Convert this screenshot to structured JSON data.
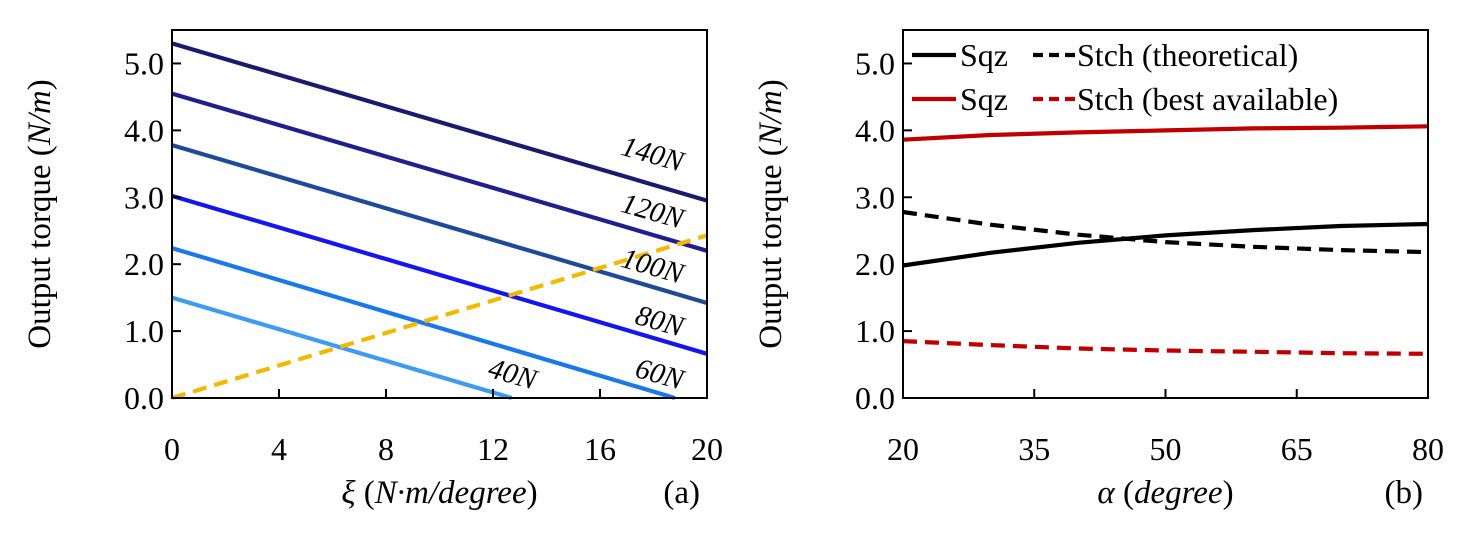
{
  "chart_data": [
    {
      "type": "line",
      "panel_label": "(a)",
      "xlabel": {
        "sym": "ξ",
        "pre": " (",
        "unit": "N·m/degree",
        "post": ")"
      },
      "ylabel": {
        "pre": "Output torque (",
        "unit": "N/m",
        "post": ")"
      },
      "xlim": [
        0,
        20
      ],
      "ylim": [
        0,
        5.5
      ],
      "xticks": [
        "0",
        "4",
        "8",
        "12",
        "16",
        "20"
      ],
      "xtick_values": [
        0,
        4,
        8,
        12,
        16,
        20
      ],
      "yticks": [
        "0.0",
        "1.0",
        "2.0",
        "3.0",
        "4.0",
        "5.0"
      ],
      "ytick_values": [
        0,
        1,
        2,
        3,
        4,
        5
      ],
      "series": [
        {
          "name": "140N",
          "label": "140N",
          "color": "#1a1a6e",
          "dash": "solid",
          "x": [
            0,
            20
          ],
          "y": [
            5.3,
            2.95
          ]
        },
        {
          "name": "120N",
          "label": "120N",
          "color": "#1f1f8f",
          "dash": "solid",
          "x": [
            0,
            20
          ],
          "y": [
            4.55,
            2.2
          ]
        },
        {
          "name": "100N",
          "label": "100N",
          "color": "#1e4a9a",
          "dash": "solid",
          "x": [
            0,
            20
          ],
          "y": [
            3.78,
            1.42
          ]
        },
        {
          "name": "80N",
          "label": "80N",
          "color": "#1515f0",
          "dash": "solid",
          "x": [
            0,
            20
          ],
          "y": [
            3.02,
            0.66
          ]
        },
        {
          "name": "60N",
          "label": "60N",
          "color": "#1a78e8",
          "dash": "solid",
          "x": [
            0,
            18.8
          ],
          "y": [
            2.24,
            0.0
          ]
        },
        {
          "name": "40N",
          "label": "40N",
          "color": "#3d9cf0",
          "dash": "solid",
          "x": [
            0,
            12.7
          ],
          "y": [
            1.5,
            0.0
          ]
        },
        {
          "name": "",
          "label": "",
          "color": "#f5b800",
          "dash": "dashed",
          "x": [
            0,
            20
          ],
          "y": [
            0.0,
            2.43
          ]
        }
      ]
    },
    {
      "type": "line",
      "panel_label": "(b)",
      "xlabel": {
        "sym": "α",
        "pre": " (",
        "unit": "degree",
        "post": ")"
      },
      "ylabel": {
        "pre": "Output torque (",
        "unit": "N/m",
        "post": ")"
      },
      "xlim": [
        20,
        80
      ],
      "ylim": [
        0,
        5.5
      ],
      "xticks": [
        "20",
        "35",
        "50",
        "65",
        "80"
      ],
      "xtick_values": [
        20,
        35,
        50,
        65,
        80
      ],
      "yticks": [
        "0.0",
        "1.0",
        "2.0",
        "3.0",
        "4.0",
        "5.0"
      ],
      "ytick_values": [
        0,
        1,
        2,
        3,
        4,
        5
      ],
      "legend_position": "top",
      "legend": [
        {
          "label": "Sqz",
          "color": "#000000",
          "dash": "solid"
        },
        {
          "label": "Stch (theoretical)",
          "color": "#000000",
          "dash": "dashed"
        },
        {
          "label": "Sqz",
          "color": "#c00000",
          "dash": "solid"
        },
        {
          "label": "Stch (best available)",
          "color": "#c00000",
          "dash": "dashed"
        }
      ],
      "series": [
        {
          "name": "Sqz",
          "color": "#c00000",
          "dash": "solid",
          "x": [
            20,
            30,
            40,
            50,
            60,
            70,
            80
          ],
          "y": [
            3.86,
            3.93,
            3.97,
            4.0,
            4.03,
            4.04,
            4.06
          ]
        },
        {
          "name": "Sqz",
          "color": "#000000",
          "dash": "solid",
          "x": [
            20,
            30,
            40,
            50,
            60,
            70,
            80
          ],
          "y": [
            1.98,
            2.17,
            2.32,
            2.43,
            2.51,
            2.57,
            2.6
          ]
        },
        {
          "name": "Stch (theoretical)",
          "color": "#000000",
          "dash": "dashed",
          "x": [
            20,
            30,
            40,
            50,
            60,
            70,
            80
          ],
          "y": [
            2.78,
            2.59,
            2.44,
            2.33,
            2.26,
            2.21,
            2.18
          ]
        },
        {
          "name": "Stch (best available)",
          "color": "#c00000",
          "dash": "dashed",
          "x": [
            20,
            30,
            40,
            50,
            60,
            70,
            80
          ],
          "y": [
            0.85,
            0.79,
            0.74,
            0.71,
            0.69,
            0.67,
            0.66
          ]
        }
      ]
    }
  ]
}
